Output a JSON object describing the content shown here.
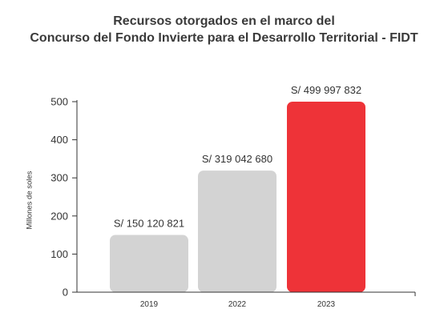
{
  "chart_data": {
    "type": "bar",
    "title_line1": "Recursos otorgados en el marco del",
    "title_line2": "Concurso del Fondo Invierte para el Desarrollo Territorial - FIDT",
    "ylabel": "Millones de soles",
    "categories": [
      "2019",
      "2022",
      "2023"
    ],
    "values": [
      150.120821,
      319.04268,
      499.997832
    ],
    "data_labels": [
      "S/ 150 120 821",
      "S/ 319 042 680",
      "S/ 499 997 832"
    ],
    "bar_colors": [
      "#d3d3d3",
      "#d3d3d3",
      "#ee3338"
    ],
    "ylim": [
      0,
      500
    ],
    "yticks": [
      0,
      100,
      200,
      300,
      400,
      500
    ],
    "grid": false
  }
}
